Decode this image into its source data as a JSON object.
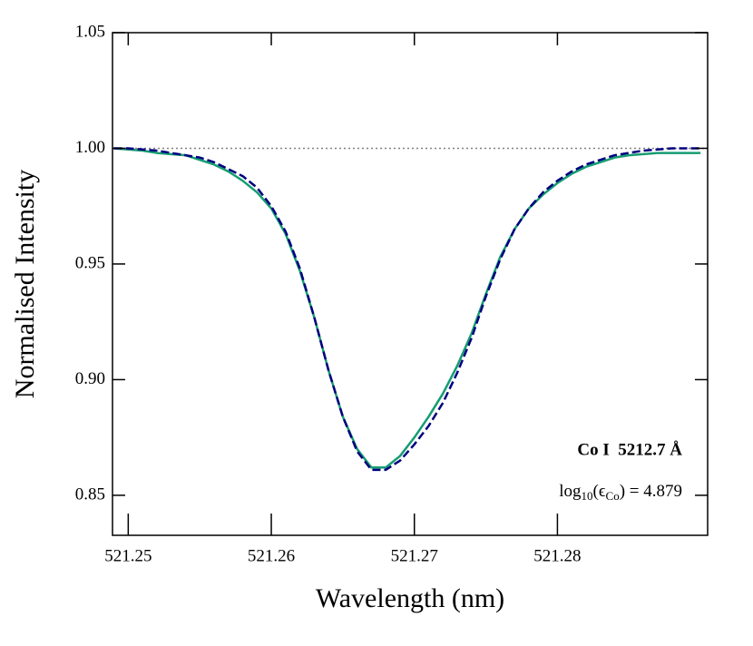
{
  "chart_data": {
    "type": "line",
    "xlabel": "Wavelength (nm)",
    "ylabel": "Normalised Intensity",
    "xlim": [
      521.2489,
      521.2905
    ],
    "ylim": [
      0.8327,
      1.05
    ],
    "xticks": [
      521.25,
      521.26,
      521.27,
      521.28
    ],
    "yticks": [
      {
        "value": 0.85,
        "label": "0.85"
      },
      {
        "value": 0.9,
        "label": "0.90"
      },
      0.95,
      {
        "value": 1,
        "label": "1.00"
      },
      1.05
    ],
    "hline": {
      "value": 1,
      "color": "#808080"
    },
    "x": [
      521.249,
      521.25,
      521.251,
      521.252,
      521.253,
      521.254,
      521.255,
      521.256,
      521.257,
      521.258,
      521.259,
      521.26,
      521.261,
      521.262,
      521.263,
      521.264,
      521.265,
      521.266,
      521.267,
      521.268,
      521.269,
      521.27,
      521.271,
      521.272,
      521.273,
      521.274,
      521.275,
      521.276,
      521.277,
      521.278,
      521.279,
      521.28,
      521.281,
      521.282,
      521.283,
      521.284,
      521.285,
      521.286,
      521.287,
      521.288,
      521.289,
      521.29
    ],
    "series": [
      {
        "color": "#169c72",
        "style": "solid",
        "values": [
          1.0,
          0.9995,
          0.999,
          0.998,
          0.9975,
          0.997,
          0.995,
          0.993,
          0.99,
          0.986,
          0.981,
          0.974,
          0.963,
          0.947,
          0.927,
          0.904,
          0.884,
          0.87,
          0.862,
          0.862,
          0.867,
          0.875,
          0.884,
          0.894,
          0.906,
          0.92,
          0.937,
          0.953,
          0.965,
          0.974,
          0.98,
          0.985,
          0.989,
          0.992,
          0.994,
          0.996,
          0.997,
          0.9975,
          0.998,
          0.998,
          0.998,
          0.998
        ]
      },
      {
        "color": "#00007f",
        "style": "dashed",
        "values": [
          1.0,
          1.0,
          0.9995,
          0.999,
          0.998,
          0.997,
          0.996,
          0.994,
          0.991,
          0.988,
          0.983,
          0.975,
          0.964,
          0.948,
          0.927,
          0.904,
          0.884,
          0.869,
          0.861,
          0.861,
          0.865,
          0.872,
          0.88,
          0.89,
          0.903,
          0.918,
          0.936,
          0.952,
          0.965,
          0.974,
          0.981,
          0.986,
          0.99,
          0.993,
          0.995,
          0.997,
          0.998,
          0.999,
          0.9995,
          1.0,
          1.0,
          1.0
        ]
      }
    ],
    "annotations": {
      "line": "Co I  5212.7 Å",
      "abundance": [
        "log",
        "10",
        "(ϵ",
        "Co",
        ") = 4.879"
      ]
    }
  }
}
